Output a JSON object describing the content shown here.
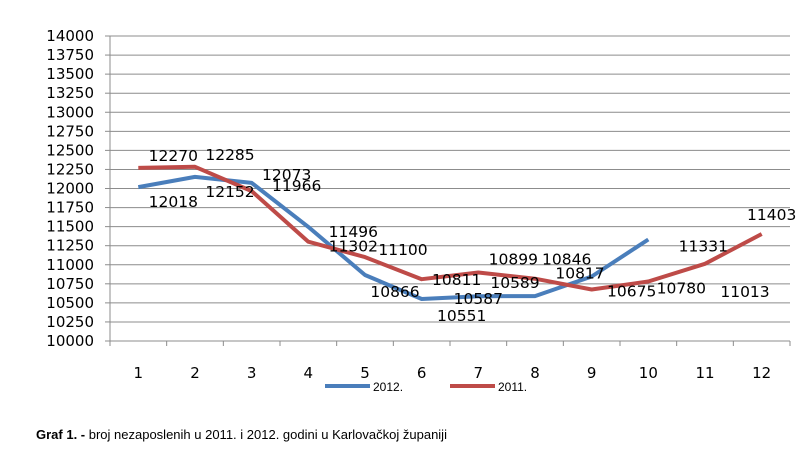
{
  "chart_data": {
    "type": "line",
    "title": "",
    "xlabel": "",
    "ylabel": "",
    "x": [
      "1",
      "2",
      "3",
      "4",
      "5",
      "6",
      "7",
      "8",
      "9",
      "10",
      "11",
      "12"
    ],
    "ylim": [
      10000,
      14000
    ],
    "ytick_step": 250,
    "grid": true,
    "legend_position": "bottom",
    "series": [
      {
        "name": "2012.",
        "color": "#4a7ebb",
        "values": [
          12018,
          12152,
          12073,
          11496,
          10866,
          10551,
          10587,
          10589,
          10846,
          11331,
          null,
          null
        ],
        "labels": [
          "12018",
          "12152",
          "12073",
          "11496",
          "10866",
          "10551",
          "10587",
          "10589",
          "10846",
          "11331",
          null,
          null
        ]
      },
      {
        "name": "2011.",
        "color": "#be4b48",
        "values": [
          12270,
          12285,
          11966,
          11302,
          11100,
          10811,
          10899,
          10817,
          10675,
          10780,
          11013,
          11403
        ],
        "labels": [
          "12270",
          "12285",
          "11966",
          "11302",
          "11100",
          "10811",
          "10899",
          "10817",
          "10675",
          "10780",
          "11013",
          "11403"
        ]
      }
    ]
  },
  "caption": {
    "prefix": "Graf 1. -",
    "text": " broj nezaposlenih u 2011. i 2012. godini u Karlovačkoj županiji"
  }
}
